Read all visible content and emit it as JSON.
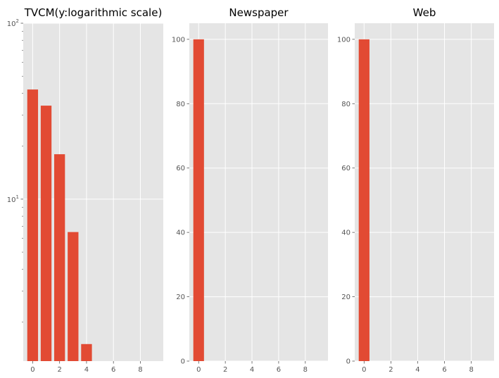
{
  "chart_data": [
    {
      "type": "bar",
      "title": "TVCM(y:logarithmic scale)",
      "yscale": "log",
      "x": [
        0,
        1,
        2,
        3,
        4
      ],
      "values": [
        42,
        34,
        18,
        6.5,
        1.5
      ],
      "xlim": [
        -0.7,
        9.7
      ],
      "ylim": [
        1.2,
        100
      ],
      "xticks": [
        0,
        2,
        4,
        6,
        8
      ],
      "xtick_labels": [
        "0",
        "2",
        "4",
        "6",
        "8"
      ],
      "yticks_major": [
        10,
        100
      ],
      "ytick_labels": [
        {
          "base": "10",
          "exp": "1"
        },
        {
          "base": "10",
          "exp": "2"
        }
      ],
      "grid": true,
      "bar_color": "#E24A33"
    },
    {
      "type": "bar",
      "title": "Newspaper",
      "yscale": "linear",
      "x": [
        0
      ],
      "values": [
        100
      ],
      "xlim": [
        -0.7,
        9.7
      ],
      "ylim": [
        0,
        105
      ],
      "xticks": [
        0,
        2,
        4,
        6,
        8
      ],
      "xtick_labels": [
        "0",
        "2",
        "4",
        "6",
        "8"
      ],
      "yticks": [
        0,
        20,
        40,
        60,
        80,
        100
      ],
      "ytick_labels": [
        "0",
        "20",
        "40",
        "60",
        "80",
        "100"
      ],
      "grid": true,
      "bar_color": "#E24A33"
    },
    {
      "type": "bar",
      "title": "Web",
      "yscale": "linear",
      "x": [
        0
      ],
      "values": [
        100
      ],
      "xlim": [
        -0.7,
        9.7
      ],
      "ylim": [
        0,
        105
      ],
      "xticks": [
        0,
        2,
        4,
        6,
        8
      ],
      "xtick_labels": [
        "0",
        "2",
        "4",
        "6",
        "8"
      ],
      "yticks": [
        0,
        20,
        40,
        60,
        80,
        100
      ],
      "ytick_labels": [
        "0",
        "20",
        "40",
        "60",
        "80",
        "100"
      ],
      "grid": true,
      "bar_color": "#E24A33"
    }
  ],
  "colors": {
    "plot_background": "#E5E5E5",
    "grid": "#FFFFFF",
    "bar": "#E24A33"
  }
}
